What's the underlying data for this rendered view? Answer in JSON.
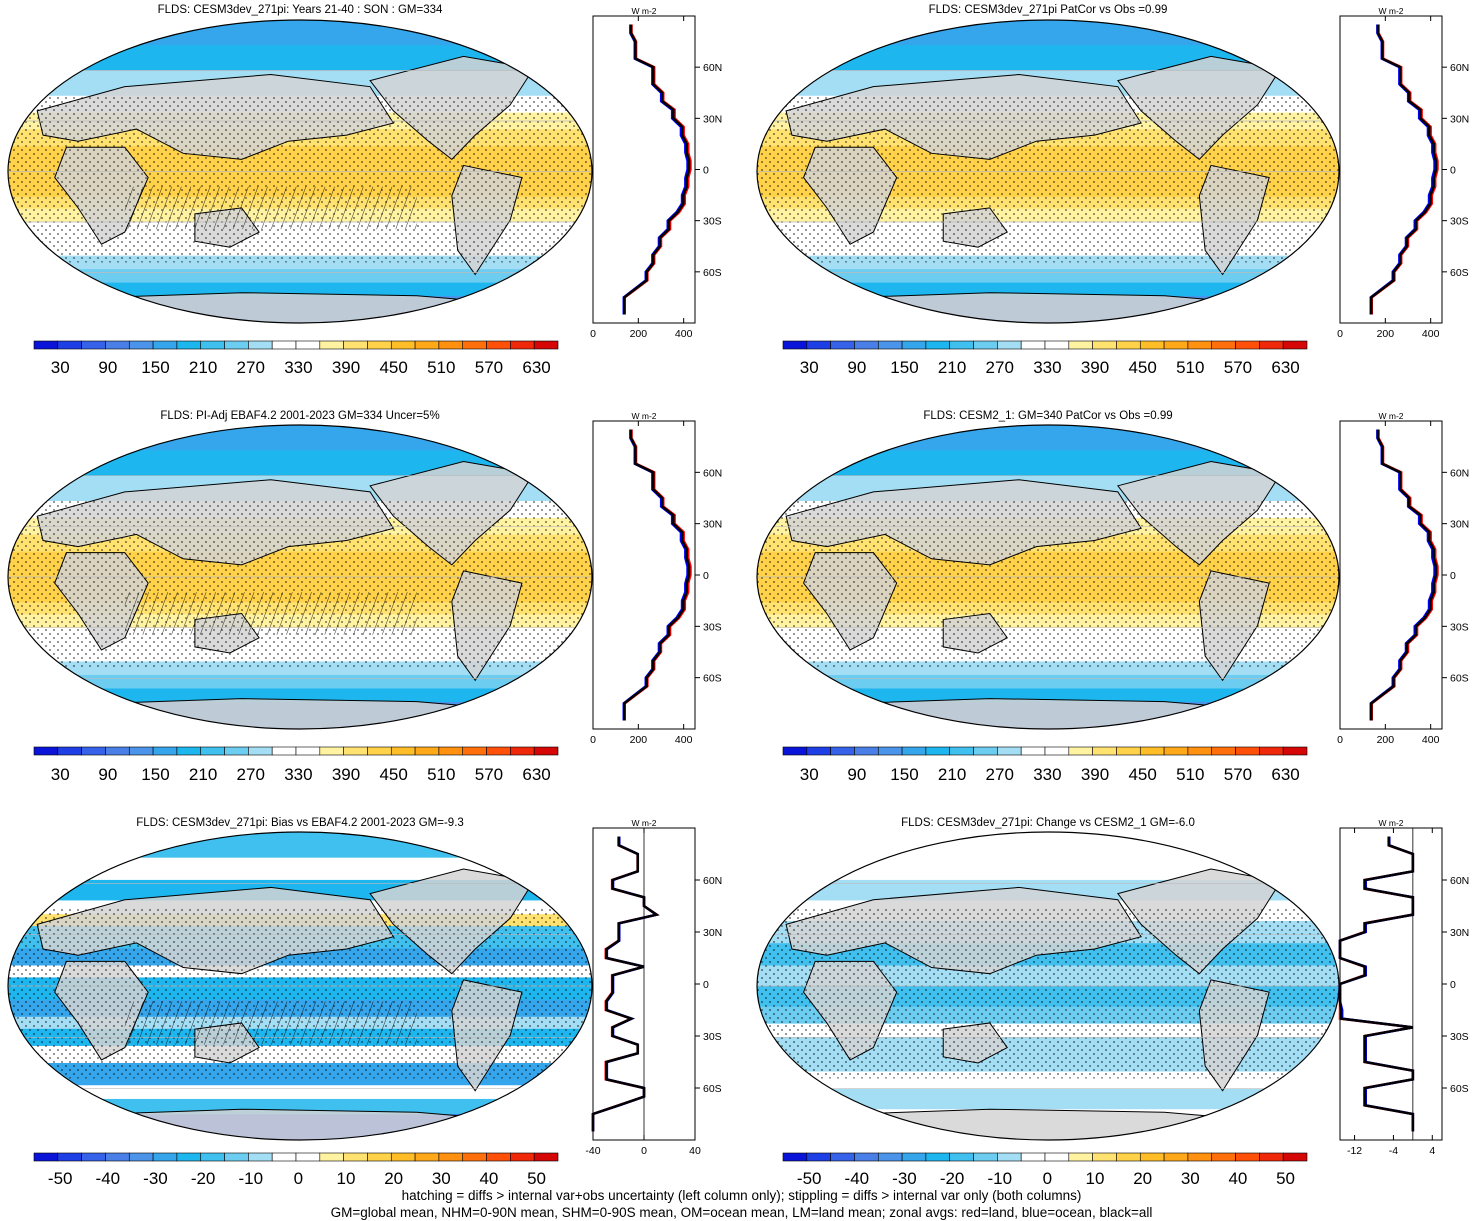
{
  "footer": {
    "line1": "hatching = diffs > internal var+obs uncertainty (left column only); stippling = diffs > internal var only (both columns)",
    "line2": "GM=global mean, NHM=0-90N mean, SHM=0-90S mean, OM=ocean mean, LM=land mean; zonal avgs: red=land, blue=ocean, black=all"
  },
  "colors": {
    "land": "#d3d3d3",
    "zonal_land": "#ff0000",
    "zonal_ocean": "#0000ff",
    "zonal_all": "#000000"
  },
  "chart_data": [
    {
      "type": "heatmap",
      "title": "FLDS: CESM3dev_271pi: Years 21-40 : SON : GM=334",
      "colorbar": {
        "ticks": [
          "30",
          "90",
          "150",
          "210",
          "270",
          "330",
          "390",
          "450",
          "510",
          "570",
          "630"
        ],
        "min": 0,
        "max": 660
      },
      "zonal": {
        "units": "W m-2",
        "xticks": [
          "0",
          "200",
          "400"
        ],
        "xlim": [
          0,
          450
        ],
        "yticks": [
          "60N",
          "30N",
          "0",
          "30S",
          "60S"
        ],
        "ylim": [
          -90,
          90
        ]
      }
    },
    {
      "type": "heatmap",
      "title": "FLDS: CESM3dev_271pi PatCor vs Obs =0.99",
      "colorbar": {
        "ticks": [
          "30",
          "90",
          "150",
          "210",
          "270",
          "330",
          "390",
          "450",
          "510",
          "570",
          "630"
        ],
        "min": 0,
        "max": 660
      },
      "zonal": {
        "units": "W m-2",
        "xticks": [
          "0",
          "200",
          "400"
        ],
        "xlim": [
          0,
          450
        ],
        "yticks": [
          "60N",
          "30N",
          "0",
          "30S",
          "60S"
        ],
        "ylim": [
          -90,
          90
        ]
      }
    },
    {
      "type": "heatmap",
      "title": "FLDS: PI-Adj EBAF4.2 2001-2023 GM=334 Uncer=5%",
      "colorbar": {
        "ticks": [
          "30",
          "90",
          "150",
          "210",
          "270",
          "330",
          "390",
          "450",
          "510",
          "570",
          "630"
        ],
        "min": 0,
        "max": 660
      },
      "zonal": {
        "units": "W m-2",
        "xticks": [
          "0",
          "200",
          "400"
        ],
        "xlim": [
          0,
          450
        ],
        "yticks": [
          "60N",
          "30N",
          "0",
          "30S",
          "60S"
        ],
        "ylim": [
          -90,
          90
        ]
      }
    },
    {
      "type": "heatmap",
      "title": "FLDS: CESM2_1: GM=340 PatCor vs Obs =0.99",
      "colorbar": {
        "ticks": [
          "30",
          "90",
          "150",
          "210",
          "270",
          "330",
          "390",
          "450",
          "510",
          "570",
          "630"
        ],
        "min": 0,
        "max": 660
      },
      "zonal": {
        "units": "W m-2",
        "xticks": [
          "0",
          "200",
          "400"
        ],
        "xlim": [
          0,
          450
        ],
        "yticks": [
          "60N",
          "30N",
          "0",
          "30S",
          "60S"
        ],
        "ylim": [
          -90,
          90
        ]
      }
    },
    {
      "type": "heatmap",
      "title": "FLDS: CESM3dev_271pi: Bias vs EBAF4.2 2001-2023  GM=-9.3",
      "colorbar": {
        "ticks": [
          "-50",
          "-40",
          "-30",
          "-20",
          "-10",
          "0",
          "10",
          "20",
          "30",
          "40",
          "50"
        ],
        "min": -55,
        "max": 55
      },
      "zonal": {
        "units": "W m-2",
        "xticks": [
          "-40",
          "0",
          "40"
        ],
        "xlim": [
          -40,
          40
        ],
        "zero_line": 0,
        "yticks": [
          "60N",
          "30N",
          "0",
          "30S",
          "60S"
        ],
        "ylim": [
          -90,
          90
        ]
      }
    },
    {
      "type": "heatmap",
      "title": "FLDS: CESM3dev_271pi: Change vs CESM2_1 GM=-6.0",
      "colorbar": {
        "ticks": [
          "-50",
          "-40",
          "-30",
          "-20",
          "-10",
          "0",
          "10",
          "20",
          "30",
          "40",
          "50"
        ],
        "min": -55,
        "max": 55
      },
      "zonal": {
        "units": "W m-2",
        "xticks": [
          "-12",
          "-4",
          "4"
        ],
        "xlim": [
          -15,
          6
        ],
        "zero_line": 0,
        "yticks": [
          "60N",
          "30N",
          "0",
          "30S",
          "60S"
        ],
        "ylim": [
          -90,
          90
        ]
      }
    }
  ]
}
